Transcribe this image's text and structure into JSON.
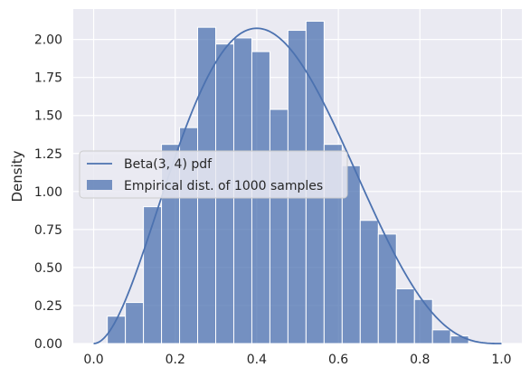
{
  "chart_data": {
    "type": "bar",
    "title": "",
    "xlabel": "",
    "ylabel": "Density",
    "xlim": [
      -0.05,
      1.05
    ],
    "ylim": [
      0,
      2.2
    ],
    "xticks": [
      "0.0",
      "0.2",
      "0.4",
      "0.6",
      "0.8",
      "1.0"
    ],
    "yticks": [
      "0.00",
      "0.25",
      "0.50",
      "0.75",
      "1.00",
      "1.25",
      "1.50",
      "1.75",
      "2.00"
    ],
    "grid": true,
    "legend_position": "center-left",
    "colors": {
      "background": "#eaeaf2",
      "grid": "#ffffff",
      "bar_fill": "#4c72b0",
      "bar_opacity": 0.75,
      "line": "#4c72b0"
    },
    "histogram": {
      "name": "Empirical dist. of 1000 samples",
      "bin_edges": [
        0.0335,
        0.0778,
        0.1221,
        0.1664,
        0.2107,
        0.255,
        0.2993,
        0.3436,
        0.3879,
        0.4322,
        0.4765,
        0.5208,
        0.5651,
        0.6094,
        0.6537,
        0.698,
        0.7423,
        0.7866,
        0.8309,
        0.8752,
        0.9195
      ],
      "densities": [
        0.18,
        0.27,
        0.9,
        1.31,
        1.42,
        2.08,
        1.97,
        2.01,
        1.92,
        1.54,
        2.06,
        2.12,
        1.31,
        1.17,
        0.81,
        0.72,
        0.36,
        0.29,
        0.09,
        0.05
      ]
    },
    "line": {
      "name": "Beta(3, 4) pdf",
      "alpha": 3,
      "beta": 4,
      "x_range": [
        0,
        1
      ]
    }
  }
}
